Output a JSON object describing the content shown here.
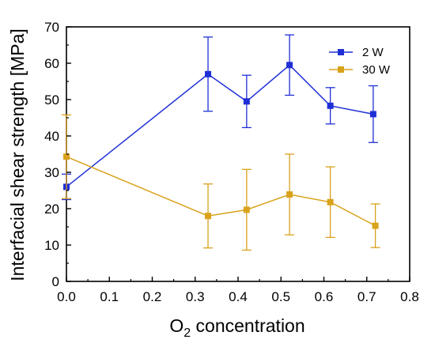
{
  "chart_data": {
    "type": "line",
    "xlabel_main": "O",
    "xlabel_sub": "2",
    "xlabel_rest": " concentration",
    "ylabel": "Interfacial shear strength [MPa]",
    "xlim": [
      0.0,
      0.8
    ],
    "ylim": [
      0,
      70
    ],
    "xticks": [
      0.0,
      0.1,
      0.2,
      0.3,
      0.4,
      0.5,
      0.6,
      0.7,
      0.8
    ],
    "xtick_labels": [
      "0.0",
      "0.1",
      "0.2",
      "0.3",
      "0.4",
      "0.5",
      "0.6",
      "0.7",
      "0.8"
    ],
    "yticks": [
      0,
      10,
      20,
      30,
      40,
      50,
      60,
      70
    ],
    "ytick_labels": [
      "0",
      "10",
      "20",
      "30",
      "40",
      "50",
      "60",
      "70"
    ],
    "grid": false,
    "legend_position": "top-right",
    "series": [
      {
        "name": "2 W",
        "color": "#1f2fd6",
        "x": [
          0.0,
          0.33,
          0.42,
          0.52,
          0.615,
          0.715
        ],
        "y": [
          26.0,
          57.0,
          49.5,
          59.5,
          48.3,
          46.0
        ],
        "err": [
          3.5,
          10.2,
          7.2,
          8.3,
          5.0,
          7.8
        ]
      },
      {
        "name": "30 W",
        "color": "#d9a21b",
        "x": [
          0.0,
          0.33,
          0.42,
          0.52,
          0.615,
          0.72
        ],
        "y": [
          34.3,
          18.0,
          19.7,
          23.9,
          21.8,
          15.3
        ],
        "err": [
          11.5,
          8.8,
          11.1,
          11.1,
          9.7,
          6.0
        ]
      }
    ]
  }
}
